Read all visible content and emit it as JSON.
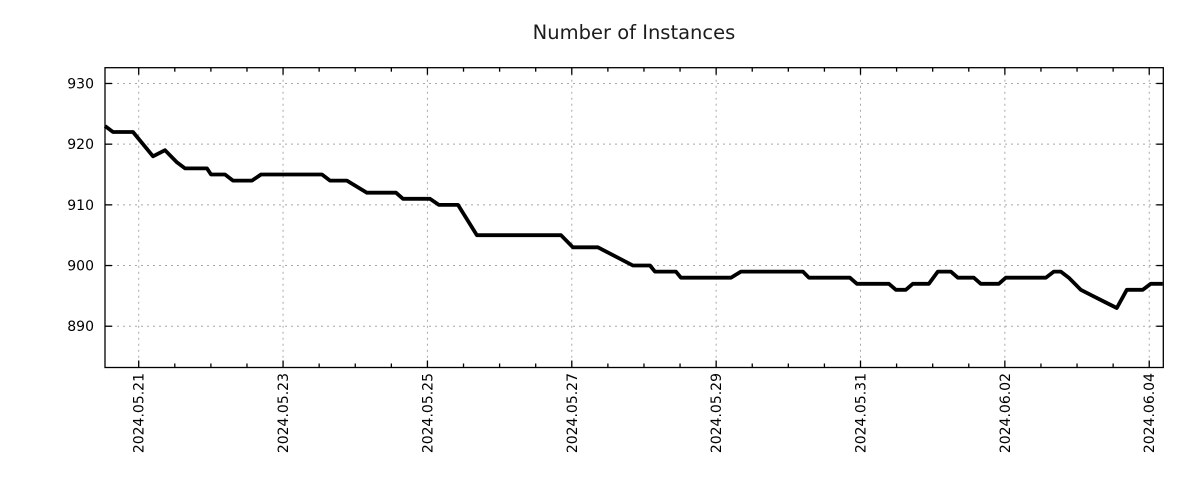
{
  "chart_data": {
    "type": "line",
    "title": "Number of Instances",
    "legend": "none",
    "grid": {
      "major": true,
      "style": "dashed",
      "color": "#a8a8a8"
    },
    "x_axis": {
      "kind": "time",
      "tick_labels": [
        "2024.05.21",
        "2024.05.23",
        "2024.05.25",
        "2024.05.27",
        "2024.05.29",
        "2024.05.31",
        "2024.06.02",
        "2024.06.04"
      ],
      "tick_positions_days": [
        0,
        2,
        4,
        6,
        8,
        10,
        12,
        14
      ],
      "minor_tick_interval_days": 0.5,
      "range_days": [
        -0.467,
        14.195
      ],
      "label_rotation_deg": 90
    },
    "y_axis": {
      "tick_labels": [
        "890",
        "900",
        "910",
        "920",
        "930"
      ],
      "tick_values": [
        890,
        900,
        910,
        920,
        930
      ],
      "range": [
        883.2,
        932.6
      ]
    },
    "series": [
      {
        "name": "instances",
        "color": "#000000",
        "line_width": 3.8,
        "points": [
          [
            -0.467,
            923
          ],
          [
            -0.356,
            922
          ],
          [
            -0.079,
            922
          ],
          [
            0.198,
            918
          ],
          [
            0.364,
            919
          ],
          [
            0.531,
            917
          ],
          [
            0.641,
            916
          ],
          [
            0.946,
            916
          ],
          [
            1.001,
            915
          ],
          [
            1.195,
            915
          ],
          [
            1.306,
            914
          ],
          [
            1.569,
            914
          ],
          [
            1.694,
            915
          ],
          [
            2.539,
            915
          ],
          [
            2.65,
            914
          ],
          [
            2.885,
            914
          ],
          [
            3.162,
            912
          ],
          [
            3.564,
            912
          ],
          [
            3.661,
            911
          ],
          [
            4.035,
            911
          ],
          [
            4.16,
            910
          ],
          [
            4.423,
            910
          ],
          [
            4.686,
            905
          ],
          [
            5.85,
            905
          ],
          [
            6.016,
            903
          ],
          [
            6.362,
            903
          ],
          [
            6.847,
            900
          ],
          [
            7.083,
            900
          ],
          [
            7.152,
            899
          ],
          [
            7.443,
            899
          ],
          [
            7.512,
            898
          ],
          [
            8.205,
            898
          ],
          [
            8.343,
            899
          ],
          [
            9.202,
            899
          ],
          [
            9.285,
            898
          ],
          [
            9.853,
            898
          ],
          [
            9.95,
            897
          ],
          [
            10.393,
            897
          ],
          [
            10.49,
            896
          ],
          [
            10.628,
            896
          ],
          [
            10.725,
            897
          ],
          [
            10.947,
            897
          ],
          [
            11.071,
            899
          ],
          [
            11.251,
            899
          ],
          [
            11.348,
            898
          ],
          [
            11.57,
            898
          ],
          [
            11.667,
            897
          ],
          [
            11.916,
            897
          ],
          [
            12.013,
            898
          ],
          [
            12.567,
            898
          ],
          [
            12.678,
            899
          ],
          [
            12.775,
            899
          ],
          [
            12.886,
            898
          ],
          [
            13.052,
            896
          ],
          [
            13.218,
            895
          ],
          [
            13.384,
            894
          ],
          [
            13.551,
            893
          ],
          [
            13.689,
            896
          ],
          [
            13.91,
            896
          ],
          [
            14.021,
            897
          ],
          [
            14.187,
            897
          ]
        ]
      }
    ]
  },
  "layout_colors": {
    "background": "#ffffff",
    "spine": "#000000",
    "grid": "#a8a8a8",
    "line": "#000000"
  }
}
